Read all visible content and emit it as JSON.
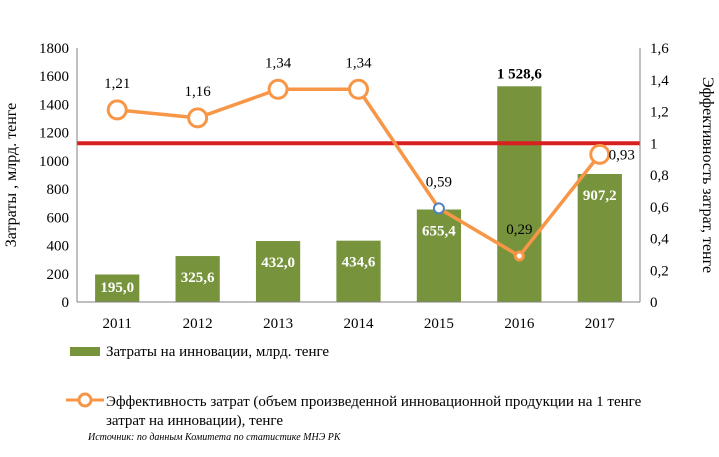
{
  "chart_data": {
    "type": "bar",
    "categories": [
      "2011",
      "2012",
      "2013",
      "2014",
      "2015",
      "2016",
      "2017"
    ],
    "series": [
      {
        "name": "Затраты на инновации, млрд. тенге",
        "type": "bar",
        "axis": "left",
        "color": "#77933c",
        "values": [
          195.0,
          325.6,
          432.0,
          434.6,
          655.4,
          1528.6,
          907.2
        ],
        "labels": [
          "195,0",
          "325,6",
          "432,0",
          "434,6",
          "655,4",
          "1 528,6",
          "907,2"
        ]
      },
      {
        "name_line1": "Эффективность затрат (объем произведенной инновационной продукции на 1 тенге",
        "name_line2": "затрат на инновации), тенге",
        "type": "line",
        "axis": "right",
        "color": "#f79646",
        "values": [
          1.21,
          1.16,
          1.34,
          1.34,
          0.59,
          0.29,
          0.93
        ],
        "labels": [
          "1,21",
          "1,16",
          "1,34",
          "1,34",
          "0,59",
          "0,29",
          "0,93"
        ]
      }
    ],
    "reference_line": {
      "axis": "right",
      "value": 1,
      "color": "#d92020"
    },
    "y_left": {
      "label": "Затраты , млрд. тенге",
      "lim": [
        0,
        1800
      ],
      "ticks": [
        "0",
        "200",
        "400",
        "600",
        "800",
        "1000",
        "1200",
        "1400",
        "1600",
        "1800"
      ]
    },
    "y_right": {
      "label": "Эффективность затрат, тенге",
      "lim": [
        0,
        1.6
      ],
      "ticks": [
        "0",
        "0,2",
        "0,4",
        "0,6",
        "0,8",
        "1",
        "1,2",
        "1,4",
        "1,6"
      ]
    },
    "grid": false,
    "legend_position": "bottom"
  },
  "source_note": "Источник: по данным Комитета по статистике МНЭ РК"
}
